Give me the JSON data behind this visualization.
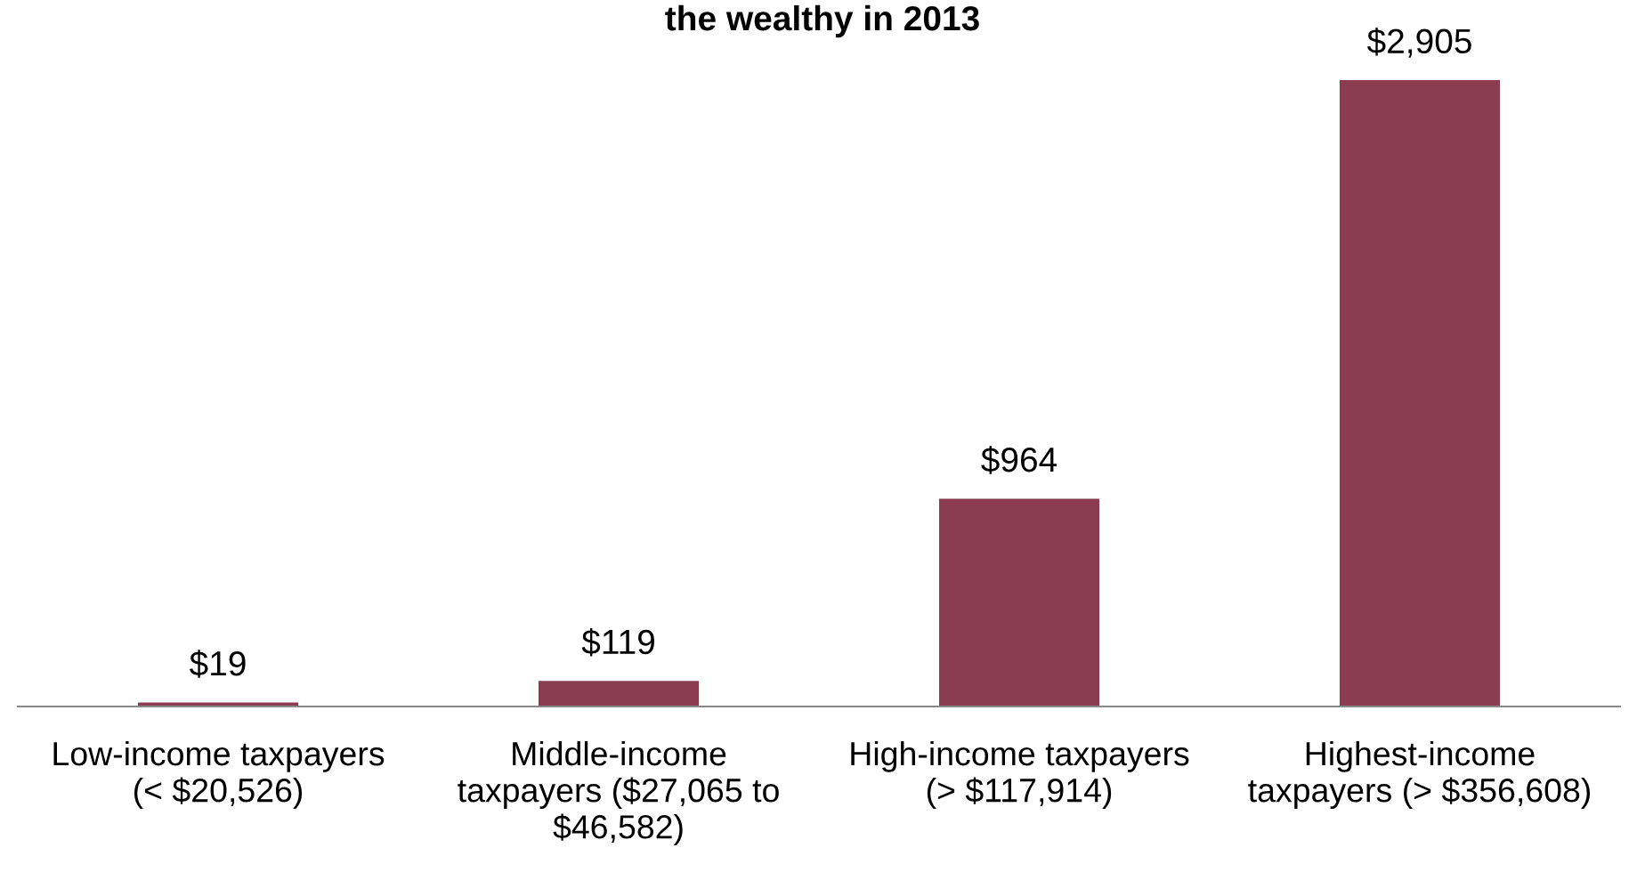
{
  "chart_data": {
    "type": "bar",
    "title": "the wealthy in 2013",
    "categories": [
      "Low-income taxpayers\n(< $20,526)",
      "Middle-income\ntaxpayers ($27,065 to\n$46,582)",
      "High-income taxpayers\n(> $117,914)",
      "Highest-income\ntaxpayers (> $356,608)"
    ],
    "values": [
      19,
      119,
      964,
      2905
    ],
    "value_labels": [
      "$19",
      "$119",
      "$964",
      "$2,905"
    ],
    "color": "#8b3c50",
    "grid": false,
    "legend": false
  }
}
